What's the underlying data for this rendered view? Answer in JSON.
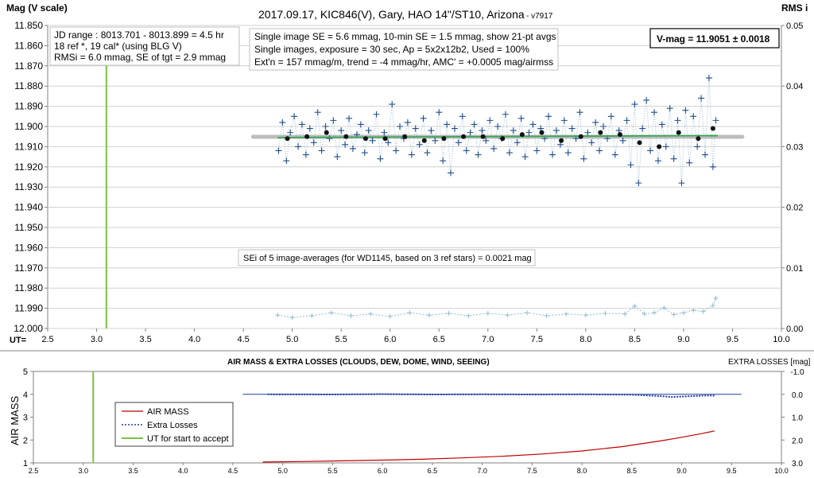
{
  "chart_data": [
    {
      "type": "scatter",
      "title": "2017.09.17,  KIC846(V),  Gary,  HAO  14\"/ST10,  Arizona",
      "title_suffix": "- v7917",
      "ylabel": "Mag (V scale)",
      "y2label": "RMS i",
      "xlabel": "UT=",
      "xlim": [
        2.5,
        10.0
      ],
      "ylim": [
        11.85,
        12.0
      ],
      "y_inverted": true,
      "y2lim": [
        0.0,
        0.05
      ],
      "grid": "horizontal",
      "x_ticks": [
        "2.5",
        "3.0",
        "3.5",
        "4.0",
        "4.5",
        "5.0",
        "5.5",
        "6.0",
        "6.5",
        "7.0",
        "7.5",
        "8.0",
        "8.5",
        "9.0",
        "9.5",
        "10.0"
      ],
      "y_ticks": [
        "11.850",
        "11.860",
        "11.870",
        "11.880",
        "11.890",
        "11.900",
        "11.910",
        "11.920",
        "11.930",
        "11.940",
        "11.950",
        "11.960",
        "11.970",
        "11.980",
        "11.990",
        "12.000"
      ],
      "y2_ticks": [
        "0.05",
        "0.04",
        "0.03",
        "0.02",
        "0.01",
        "0.00"
      ],
      "annotations": {
        "jd_box": [
          "JD range : 8013.701 - 8013.899 =  4.5  hr",
          "18 ref *, 19 cal* (using BLG V)",
          "RMSi = 6.0 mmag, SE of tgt = 2.9 mmag"
        ],
        "info_box": [
          "Single image SE = 5.6 mmag, 10-min SE = 1.5 mmag, show 21-pt avgs",
          "Single images, exposure = 30 sec, Ap = 5x2x12b2, Used = 100%",
          "Ext'n = 157 mmag/m, trend =  -4 mmag/hr, AMC' = +0.0005 mag/airmss"
        ],
        "vmag_box": "V-mag = 11.9051 ± 0.0018",
        "sei_box": "SEi of 5 image-averages (for WD1145, based on 3 ref stars) = 0.0021 mag"
      },
      "series": [
        {
          "name": "Mean level",
          "x": [
            4.6,
            9.6
          ],
          "y": [
            11.9051,
            11.9051
          ],
          "color": "#bdbdbd"
        },
        {
          "name": "Trend",
          "x": [
            4.85,
            9.35
          ],
          "y": [
            11.9055,
            11.9045
          ],
          "color": "#3aa655"
        },
        {
          "name": "UT for start to accept",
          "x": [
            3.1,
            3.1
          ],
          "y": [
            11.862,
            12.0
          ],
          "color": "#7cc142"
        },
        {
          "name": "21-pt averages",
          "x": [
            4.95,
            5.15,
            5.35,
            5.55,
            5.75,
            5.95,
            6.15,
            6.35,
            6.55,
            6.75,
            6.95,
            7.15,
            7.35,
            7.55,
            7.75,
            7.95,
            8.15,
            8.35,
            8.55,
            8.75,
            8.95,
            9.15,
            9.3
          ],
          "y": [
            11.906,
            11.905,
            11.903,
            11.905,
            11.906,
            11.906,
            11.905,
            11.907,
            11.906,
            11.905,
            11.905,
            11.906,
            11.904,
            11.903,
            11.907,
            11.905,
            11.903,
            11.904,
            11.908,
            11.91,
            11.903,
            11.906,
            11.901
          ],
          "color": "#111111"
        },
        {
          "name": "Single images",
          "color": "#1f4e8c",
          "x": [
            4.86,
            4.9,
            4.94,
            4.98,
            5.02,
            5.06,
            5.1,
            5.14,
            5.18,
            5.22,
            5.26,
            5.3,
            5.34,
            5.38,
            5.42,
            5.46,
            5.5,
            5.54,
            5.58,
            5.62,
            5.66,
            5.7,
            5.74,
            5.78,
            5.82,
            5.86,
            5.9,
            5.94,
            5.98,
            6.02,
            6.06,
            6.1,
            6.14,
            6.18,
            6.22,
            6.26,
            6.3,
            6.34,
            6.38,
            6.42,
            6.46,
            6.5,
            6.54,
            6.58,
            6.62,
            6.66,
            6.7,
            6.74,
            6.78,
            6.82,
            6.86,
            6.9,
            6.94,
            6.98,
            7.02,
            7.06,
            7.1,
            7.14,
            7.18,
            7.22,
            7.26,
            7.3,
            7.34,
            7.38,
            7.42,
            7.46,
            7.5,
            7.54,
            7.58,
            7.62,
            7.66,
            7.7,
            7.74,
            7.78,
            7.82,
            7.86,
            7.9,
            7.94,
            7.98,
            8.02,
            8.06,
            8.1,
            8.14,
            8.18,
            8.22,
            8.26,
            8.3,
            8.34,
            8.38,
            8.42,
            8.46,
            8.5,
            8.54,
            8.58,
            8.62,
            8.66,
            8.7,
            8.74,
            8.78,
            8.82,
            8.86,
            8.9,
            8.94,
            8.98,
            9.02,
            9.06,
            9.1,
            9.14,
            9.18,
            9.22,
            9.26,
            9.3,
            9.33
          ],
          "y": [
            11.912,
            11.898,
            11.917,
            11.903,
            11.895,
            11.91,
            11.899,
            11.914,
            11.901,
            11.908,
            11.893,
            11.912,
            11.9,
            11.906,
            11.897,
            11.915,
            11.902,
            11.909,
            11.896,
            11.911,
            11.904,
            11.899,
            11.913,
            11.902,
            11.907,
            11.894,
            11.916,
            11.903,
            11.908,
            11.889,
            11.912,
            11.9,
            11.906,
            11.898,
            11.914,
            11.901,
            11.909,
            11.896,
            11.913,
            11.902,
            11.907,
            11.893,
            11.917,
            11.899,
            11.923,
            11.901,
            11.908,
            11.895,
            11.912,
            11.903,
            11.899,
            11.914,
            11.902,
            11.907,
            11.897,
            11.911,
            11.9,
            11.906,
            11.894,
            11.913,
            11.902,
            11.908,
            11.896,
            11.915,
            11.903,
            11.899,
            11.912,
            11.901,
            11.906,
            11.895,
            11.914,
            11.902,
            11.909,
            11.897,
            11.913,
            11.901,
            11.906,
            11.893,
            11.916,
            11.903,
            11.908,
            11.898,
            11.912,
            11.9,
            11.906,
            11.895,
            11.914,
            11.902,
            11.907,
            11.897,
            11.919,
            11.889,
            11.928,
            11.901,
            11.887,
            11.912,
            11.893,
            11.917,
            11.899,
            11.91,
            11.891,
            11.916,
            11.897,
            11.928,
            11.892,
            11.918,
            11.895,
            11.91,
            11.886,
            11.914,
            11.876,
            11.92,
            11.897
          ]
        },
        {
          "name": "RMS i",
          "axis": "right",
          "color": "#8fbcd4",
          "x": [
            4.85,
            5.0,
            5.2,
            5.4,
            5.6,
            5.8,
            6.0,
            6.2,
            6.4,
            6.6,
            6.8,
            7.0,
            7.2,
            7.4,
            7.6,
            7.8,
            8.0,
            8.2,
            8.4,
            8.5,
            8.6,
            8.7,
            8.8,
            8.9,
            9.0,
            9.1,
            9.2,
            9.3,
            9.33
          ],
          "y": [
            0.0022,
            0.0018,
            0.0021,
            0.0026,
            0.0021,
            0.0024,
            0.002,
            0.0026,
            0.0022,
            0.0025,
            0.0021,
            0.0025,
            0.0022,
            0.0026,
            0.0021,
            0.0024,
            0.0022,
            0.0025,
            0.0024,
            0.0037,
            0.0024,
            0.0026,
            0.0034,
            0.0023,
            0.0026,
            0.003,
            0.0028,
            0.0038,
            0.005
          ]
        }
      ]
    },
    {
      "type": "line",
      "title": "AIR MASS & EXTRA LOSSES (CLOUDS, DEW, DOME, WIND, SEEING)",
      "ylabel": "AIR MASS",
      "y2label": "EXTRA LOSSES [mag]",
      "xlim": [
        2.5,
        10.0
      ],
      "ylim": [
        1,
        5
      ],
      "y2lim": [
        -1.0,
        3.0
      ],
      "y2_inverted": true,
      "x_ticks": [
        "2.5",
        "3.0",
        "3.5",
        "4.0",
        "4.5",
        "5.0",
        "5.5",
        "6.0",
        "6.5",
        "7.0",
        "7.5",
        "8.0",
        "8.5",
        "9.0",
        "9.5",
        "10.0"
      ],
      "y_ticks": [
        "5",
        "4",
        "3",
        "2",
        "1"
      ],
      "y2_ticks": [
        "-1.0",
        "0.0",
        "1.0",
        "2.0",
        "3.0"
      ],
      "legend": {
        "placement": "left",
        "entries": [
          "AIR MASS",
          "Extra Losses",
          "UT for start to accept"
        ]
      },
      "series": [
        {
          "name": "AIR MASS",
          "color": "#c00000",
          "x": [
            4.8,
            5.2,
            5.6,
            6.0,
            6.4,
            6.8,
            7.2,
            7.6,
            8.0,
            8.4,
            8.8,
            9.0,
            9.2,
            9.33
          ],
          "y": [
            1.04,
            1.06,
            1.09,
            1.12,
            1.16,
            1.22,
            1.29,
            1.39,
            1.52,
            1.71,
            1.97,
            2.12,
            2.28,
            2.4
          ]
        },
        {
          "name": "Extra Losses",
          "color": "#1f3fa0",
          "x": [
            4.85,
            5.5,
            6.0,
            6.5,
            7.0,
            7.5,
            8.0,
            8.5,
            8.8,
            8.9,
            9.0,
            9.1,
            9.2,
            9.3,
            9.33
          ],
          "y": [
            0.0,
            0.01,
            -0.01,
            0.01,
            0.0,
            0.01,
            0.0,
            0.02,
            0.08,
            0.12,
            0.1,
            0.08,
            0.06,
            0.05,
            0.06
          ]
        },
        {
          "name": "Zero level",
          "color": "#1f3fa0",
          "x": [
            4.6,
            9.6
          ],
          "y": [
            0.0,
            0.0
          ]
        },
        {
          "name": "UT for start to accept",
          "color": "#7cc142",
          "x": [
            3.1,
            3.1
          ],
          "y": [
            1,
            5
          ]
        }
      ]
    }
  ]
}
